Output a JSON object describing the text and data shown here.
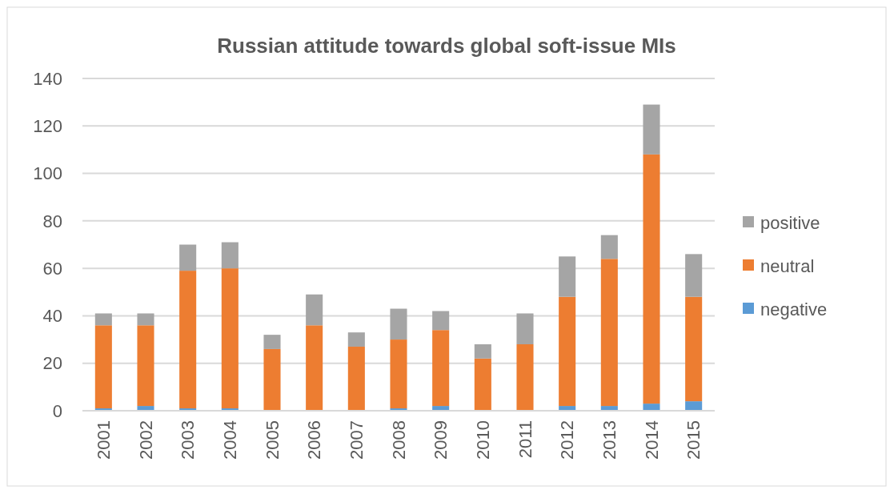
{
  "chart_data": {
    "type": "bar",
    "title": "Russian attitude towards global soft-issue MIs",
    "stacked": true,
    "categories": [
      "2001",
      "2002",
      "2003",
      "2004",
      "2005",
      "2006",
      "2007",
      "2008",
      "2009",
      "2010",
      "2011",
      "2012",
      "2013",
      "2014",
      "2015"
    ],
    "series": [
      {
        "name": "negative",
        "color": "#5b9bd5",
        "values": [
          1,
          2,
          1,
          1,
          0,
          0,
          0,
          1,
          2,
          0,
          0,
          2,
          2,
          3,
          4
        ]
      },
      {
        "name": "neutral",
        "color": "#ed7d31",
        "values": [
          35,
          34,
          58,
          59,
          26,
          36,
          27,
          29,
          32,
          22,
          28,
          46,
          62,
          105,
          44
        ]
      },
      {
        "name": "positive",
        "color": "#a5a5a5",
        "values": [
          5,
          5,
          11,
          11,
          6,
          13,
          6,
          13,
          8,
          6,
          13,
          17,
          10,
          21,
          18
        ]
      }
    ],
    "ylim": [
      0,
      140
    ],
    "yticks": [
      0,
      20,
      40,
      60,
      80,
      100,
      120,
      140
    ],
    "grid": "y",
    "legend": "right"
  }
}
